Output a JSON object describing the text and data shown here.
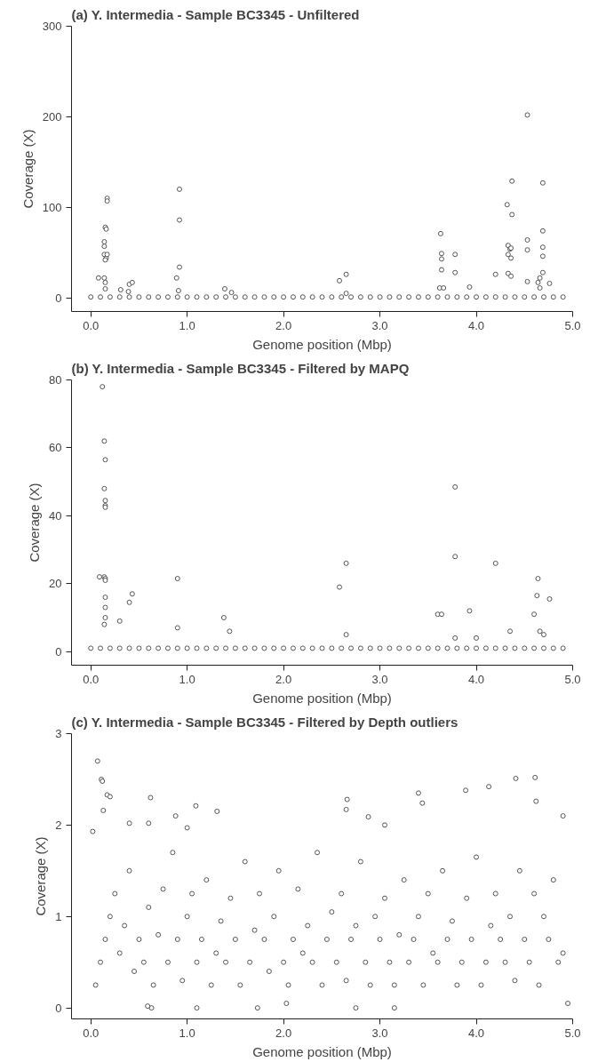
{
  "chart_data": [
    {
      "type": "scatter",
      "title": "(a) Y. Intermedia - Sample BC3345 - Unfiltered",
      "xlabel": "Genome position (Mbp)",
      "ylabel": "Coverage (X)",
      "marker": "circle",
      "grid": false,
      "xlim": [
        -0.2,
        5.0
      ],
      "xticks": [
        {
          "value": 0,
          "label": "0.0"
        },
        {
          "value": 1,
          "label": "1.0"
        },
        {
          "value": 2,
          "label": "2.0"
        },
        {
          "value": 3,
          "label": "3.0"
        },
        {
          "value": 4,
          "label": "4.0"
        },
        {
          "value": 5,
          "label": "5.0"
        }
      ],
      "ylim": [
        -15,
        300
      ],
      "yticks": [
        0,
        100,
        200,
        300
      ],
      "series": [
        {
          "color": "#555555",
          "sizes": [
            1,
            1,
            1,
            1,
            1,
            1,
            1,
            1,
            1,
            1,
            1,
            1,
            1,
            1,
            1,
            1,
            1,
            1,
            1,
            1,
            1,
            1,
            1,
            1,
            1,
            1,
            1,
            1,
            1,
            1,
            1,
            1,
            1,
            1,
            1,
            1,
            1,
            1,
            1,
            1,
            1,
            1,
            1,
            1,
            1,
            1,
            1,
            1,
            1,
            1,
            1,
            1,
            1,
            1,
            1,
            1,
            1,
            1,
            1,
            1,
            1,
            1,
            1,
            1,
            1,
            1,
            1,
            1,
            1,
            1,
            1,
            1,
            1,
            1,
            1,
            1,
            1,
            1,
            1,
            1,
            1,
            1,
            1,
            1,
            1,
            1,
            1,
            1,
            1,
            1,
            1,
            1,
            1,
            1,
            1,
            1,
            1,
            1,
            1,
            1,
            1,
            1,
            1,
            1,
            1,
            1,
            1,
            1,
            1,
            1,
            1
          ],
          "x": [
            0.0,
            0.1,
            0.2,
            0.3,
            0.4,
            0.5,
            0.6,
            0.7,
            0.8,
            0.9,
            1.0,
            1.1,
            1.2,
            1.3,
            1.4,
            1.5,
            1.6,
            1.7,
            1.8,
            1.9,
            2.0,
            2.1,
            2.2,
            2.3,
            2.4,
            2.5,
            2.6,
            2.7,
            2.8,
            2.9,
            3.0,
            3.1,
            3.2,
            3.3,
            3.4,
            3.5,
            3.6,
            3.7,
            3.8,
            3.9,
            4.0,
            4.1,
            4.2,
            4.3,
            4.4,
            4.5,
            4.6,
            4.7,
            4.8,
            4.9,
            0.08,
            0.14,
            0.14,
            0.15,
            0.16,
            0.17,
            0.17,
            0.14,
            0.16,
            0.17,
            0.15,
            0.14,
            0.15,
            0.15,
            0.31,
            0.39,
            0.4,
            0.43,
            0.89,
            0.92,
            0.92,
            0.92,
            0.91,
            1.39,
            1.46,
            2.58,
            2.65,
            2.65,
            3.62,
            3.63,
            3.64,
            3.64,
            3.64,
            3.66,
            3.78,
            3.78,
            3.93,
            4.2,
            4.32,
            4.33,
            4.33,
            4.33,
            4.35,
            4.36,
            4.37,
            4.37,
            4.36,
            4.36,
            4.53,
            4.53,
            4.53,
            4.53,
            4.64,
            4.66,
            4.66,
            4.69,
            4.69,
            4.69,
            4.69,
            4.69,
            4.76
          ],
          "values": [
            1,
            1,
            1,
            1,
            1,
            1,
            1,
            1,
            1,
            1,
            1,
            1,
            1,
            1,
            1,
            1,
            1,
            1,
            1,
            1,
            1,
            1,
            1,
            1,
            1,
            1,
            1,
            1,
            1,
            1,
            1,
            1,
            1,
            1,
            1,
            1,
            1,
            1,
            1,
            1,
            1,
            1,
            1,
            1,
            1,
            1,
            1,
            1,
            1,
            1,
            22,
            62,
            57,
            78,
            76,
            110,
            107,
            48,
            44,
            48,
            42,
            22,
            17,
            10,
            9,
            7,
            15,
            17,
            22,
            120,
            86,
            34,
            8,
            10,
            6,
            19,
            26,
            5,
            11,
            71,
            49,
            43,
            31,
            11,
            48,
            28,
            12,
            26,
            103,
            58,
            48,
            27,
            54,
            44,
            129,
            92,
            55,
            24,
            202,
            64,
            53,
            18,
            17,
            22,
            11,
            127,
            74,
            56,
            46,
            28,
            16
          ]
        }
      ]
    },
    {
      "type": "scatter",
      "title": "(b) Y. Intermedia - Sample BC3345 - Filtered by MAPQ",
      "xlabel": "Genome position (Mbp)",
      "ylabel": "Coverage (X)",
      "marker": "circle",
      "grid": false,
      "xlim": [
        -0.2,
        5.0
      ],
      "xticks": [
        {
          "value": 0,
          "label": "0.0"
        },
        {
          "value": 1,
          "label": "1.0"
        },
        {
          "value": 2,
          "label": "2.0"
        },
        {
          "value": 3,
          "label": "3.0"
        },
        {
          "value": 4,
          "label": "4.0"
        },
        {
          "value": 5,
          "label": "5.0"
        }
      ],
      "ylim": [
        -4,
        80
      ],
      "yticks": [
        0,
        20,
        40,
        60,
        80
      ],
      "series": [
        {
          "color": "#555555",
          "sizes": [
            1,
            1,
            1,
            1,
            1,
            1,
            1,
            1,
            1,
            1,
            1,
            1,
            1,
            1,
            1,
            1,
            1,
            1,
            1,
            1,
            1,
            1,
            1,
            1,
            1,
            1,
            1,
            1,
            1,
            1,
            1,
            1,
            1,
            1,
            1,
            1,
            1,
            1,
            1,
            1,
            1,
            1,
            1,
            1,
            1,
            1,
            1,
            1,
            1,
            1,
            1,
            1,
            1,
            1,
            1,
            1,
            1,
            1,
            1,
            1,
            1,
            1,
            1,
            1,
            1,
            1,
            1,
            1,
            1,
            1,
            1,
            1,
            1,
            1,
            1,
            1,
            1,
            1,
            1,
            1,
            1,
            1,
            1,
            1,
            1,
            1,
            1,
            1,
            1,
            1
          ],
          "x": [
            0.0,
            0.1,
            0.2,
            0.3,
            0.4,
            0.5,
            0.6,
            0.7,
            0.8,
            0.9,
            1.0,
            1.1,
            1.2,
            1.3,
            1.4,
            1.5,
            1.6,
            1.7,
            1.8,
            1.9,
            2.0,
            2.1,
            2.2,
            2.3,
            2.4,
            2.5,
            2.6,
            2.7,
            2.8,
            2.9,
            3.0,
            3.1,
            3.2,
            3.3,
            3.4,
            3.5,
            3.6,
            3.7,
            3.8,
            3.9,
            4.0,
            4.1,
            4.2,
            4.3,
            4.4,
            4.5,
            4.6,
            4.7,
            4.8,
            4.9,
            0.12,
            0.14,
            0.15,
            0.14,
            0.15,
            0.15,
            0.15,
            0.09,
            0.14,
            0.15,
            0.15,
            0.15,
            0.15,
            0.15,
            0.14,
            0.3,
            0.4,
            0.43,
            0.9,
            0.9,
            1.38,
            1.44,
            2.58,
            2.65,
            2.65,
            3.6,
            3.64,
            3.78,
            3.78,
            3.78,
            3.93,
            4.0,
            4.2,
            4.35,
            4.6,
            4.63,
            4.64,
            4.66,
            4.7,
            4.76
          ],
          "values": [
            1,
            1,
            1,
            1,
            1,
            1,
            1,
            1,
            1,
            1,
            1,
            1,
            1,
            1,
            1,
            1,
            1,
            1,
            1,
            1,
            1,
            1,
            1,
            1,
            1,
            1,
            1,
            1,
            1,
            1,
            1,
            1,
            1,
            1,
            1,
            1,
            1,
            1,
            1,
            1,
            1,
            1,
            1,
            1,
            1,
            1,
            1,
            1,
            1,
            1,
            78,
            62,
            56.5,
            48,
            44.5,
            43,
            42.5,
            22,
            22,
            21.5,
            21,
            16,
            13,
            10,
            8,
            9,
            14.5,
            17,
            21.5,
            7,
            10,
            6,
            19,
            26,
            5,
            11,
            11,
            48.5,
            28,
            4,
            12,
            4,
            26,
            6,
            11,
            16.5,
            21.5,
            6,
            5,
            15.5
          ]
        }
      ]
    },
    {
      "type": "scatter",
      "title": "(c) Y. Intermedia - Sample BC3345 - Filtered by Depth outliers",
      "xlabel": "Genome position (Mbp)",
      "ylabel": "Coverage (X)",
      "marker": "circle",
      "grid": false,
      "xlim": [
        -0.2,
        5.0
      ],
      "xticks": [
        {
          "value": 0,
          "label": "0.0"
        },
        {
          "value": 1,
          "label": "1.0"
        },
        {
          "value": 2,
          "label": "2.0"
        },
        {
          "value": 3,
          "label": "3.0"
        },
        {
          "value": 4,
          "label": "4.0"
        },
        {
          "value": 5,
          "label": "5.0"
        }
      ],
      "ylim": [
        -0.12,
        3
      ],
      "yticks": [
        0,
        1,
        2,
        3
      ],
      "series": [
        {
          "color": "#555555",
          "sizes": [
            1,
            1,
            1,
            1,
            1,
            1,
            1,
            1,
            1,
            1,
            1,
            1,
            1,
            1,
            1,
            1,
            1,
            1,
            1,
            1,
            1,
            1,
            1,
            1,
            1,
            1,
            1,
            1,
            1,
            1,
            1,
            1,
            1,
            1,
            1,
            1,
            1,
            1,
            1,
            1,
            1,
            1,
            1,
            1,
            1,
            1,
            1,
            1,
            1,
            1,
            1,
            1,
            1,
            1,
            1,
            1,
            1,
            1,
            1,
            1,
            1,
            1,
            1,
            1,
            1,
            1,
            1,
            1,
            1,
            1,
            1,
            1,
            1,
            1,
            1,
            1,
            1,
            1,
            1,
            1,
            1,
            1,
            1,
            1,
            1,
            1,
            1,
            1,
            1,
            1,
            1,
            1,
            1,
            1,
            1,
            1,
            1,
            1,
            1,
            1,
            1,
            1,
            1,
            1,
            1,
            1,
            1,
            1,
            1,
            1,
            1,
            1,
            1,
            1,
            1,
            1,
            1,
            1,
            1,
            1,
            1,
            1,
            1,
            1,
            1,
            1,
            1,
            1,
            1,
            1,
            1,
            1
          ],
          "x": [
            0.05,
            0.1,
            0.15,
            0.2,
            0.25,
            0.3,
            0.35,
            0.4,
            0.45,
            0.5,
            0.55,
            0.6,
            0.65,
            0.7,
            0.75,
            0.8,
            0.85,
            0.9,
            0.95,
            1.0,
            1.05,
            1.1,
            1.15,
            1.2,
            1.25,
            1.3,
            1.35,
            1.4,
            1.45,
            1.5,
            1.55,
            1.6,
            1.65,
            1.7,
            1.75,
            1.8,
            1.85,
            1.9,
            1.95,
            2.0,
            2.05,
            2.1,
            2.15,
            2.2,
            2.25,
            2.3,
            2.35,
            2.4,
            2.45,
            2.5,
            2.55,
            2.6,
            2.65,
            2.7,
            2.75,
            2.8,
            2.85,
            2.9,
            2.95,
            3.0,
            3.05,
            3.1,
            3.15,
            3.2,
            3.25,
            3.3,
            3.35,
            3.4,
            3.45,
            3.5,
            3.55,
            3.6,
            3.65,
            3.7,
            3.75,
            3.8,
            3.85,
            3.9,
            3.95,
            4.0,
            4.05,
            4.1,
            4.15,
            4.2,
            4.25,
            4.3,
            4.35,
            4.4,
            4.45,
            4.5,
            4.55,
            4.6,
            4.65,
            4.7,
            4.75,
            4.8,
            4.85,
            4.9,
            0.07,
            0.11,
            0.12,
            0.17,
            0.2,
            0.13,
            0.62,
            1.09,
            1.31,
            2.66,
            2.65,
            3.4,
            3.44,
            3.89,
            4.13,
            4.41,
            4.61,
            4.62,
            0.6,
            0.4,
            0.88,
            2.88,
            4.9,
            0.02,
            1.0,
            3.05,
            0.63,
            0.59,
            1.1,
            2.75,
            3.15,
            4.95,
            1.73,
            2.03
          ],
          "values": [
            0.25,
            0.5,
            0.75,
            1.0,
            1.25,
            0.6,
            0.9,
            1.5,
            0.4,
            0.75,
            0.5,
            1.1,
            0.25,
            0.8,
            1.3,
            0.5,
            1.7,
            0.75,
            0.3,
            1.0,
            1.25,
            0.5,
            0.75,
            1.4,
            0.25,
            0.6,
            0.95,
            0.5,
            1.2,
            0.75,
            0.25,
            1.6,
            0.5,
            0.85,
            1.25,
            0.75,
            0.4,
            1.0,
            1.5,
            0.5,
            0.25,
            0.75,
            1.3,
            0.6,
            0.9,
            0.5,
            1.7,
            0.25,
            0.75,
            1.05,
            0.5,
            1.25,
            0.3,
            0.75,
            0.9,
            1.6,
            0.5,
            0.25,
            1.0,
            0.75,
            1.2,
            0.5,
            0.25,
            0.8,
            1.4,
            0.5,
            0.75,
            1.0,
            0.25,
            1.25,
            0.6,
            0.5,
            1.5,
            0.75,
            0.95,
            0.25,
            0.5,
            1.2,
            0.75,
            1.65,
            0.25,
            0.5,
            0.9,
            1.25,
            0.75,
            0.5,
            1.0,
            0.3,
            1.5,
            0.75,
            0.5,
            1.25,
            0.25,
            1.0,
            0.75,
            1.4,
            0.5,
            0.6,
            2.7,
            2.5,
            2.48,
            2.33,
            2.31,
            2.16,
            2.3,
            2.21,
            2.15,
            2.28,
            2.17,
            2.35,
            2.24,
            2.38,
            2.42,
            2.51,
            2.52,
            2.26,
            2.02,
            2.02,
            2.1,
            2.09,
            2.1,
            1.93,
            1.97,
            2.0,
            0.0,
            0.02,
            0.0,
            0.0,
            0.0,
            0.05,
            0.0,
            0.05
          ]
        }
      ]
    }
  ]
}
